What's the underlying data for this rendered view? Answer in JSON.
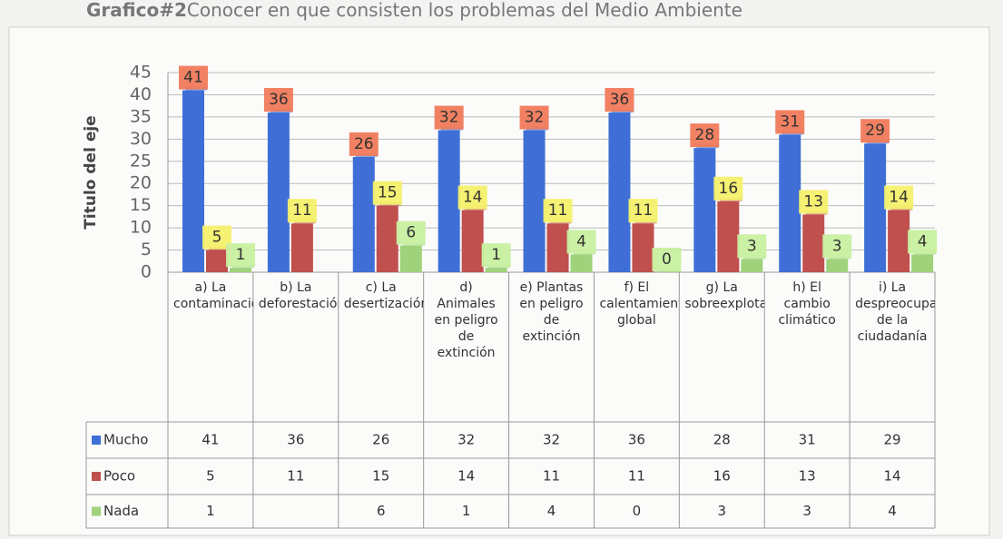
{
  "chart_data": {
    "type": "bar",
    "title": [
      "Grafico#2",
      "Conocer en que consisten los problemas del Medio Ambiente"
    ],
    "y_label": "Titulo del eje",
    "categories": [
      "a) La contaminación",
      "b) La deforestación",
      "c) La desertización",
      "d) Animales en peligro de extinción",
      "e) Plantas en peligro de extinción",
      "f) El calentamiento global",
      "g) La sobreexplotación.",
      "h) El cambio climático",
      "i) La despreocupación de la ciudadanía"
    ],
    "series": [
      {
        "name": "Mucho",
        "color": "#3f6fd6",
        "label_color": "#f07a5a",
        "values": [
          41,
          36,
          26,
          32,
          32,
          36,
          28,
          31,
          29
        ]
      },
      {
        "name": "Poco",
        "color": "#c0504d",
        "label_color": "#f4f06a",
        "values": [
          5,
          11,
          15,
          14,
          11,
          11,
          16,
          13,
          14
        ]
      },
      {
        "name": "Nada",
        "color": "#9fd27a",
        "label_color": "#c8f0a0",
        "values": [
          1,
          null,
          6,
          1,
          4,
          0,
          3,
          3,
          4
        ]
      }
    ],
    "ylim": [
      0,
      45
    ],
    "yticks": [
      0,
      5,
      10,
      15,
      20,
      25,
      30,
      35,
      40,
      45
    ],
    "grid": true
  }
}
